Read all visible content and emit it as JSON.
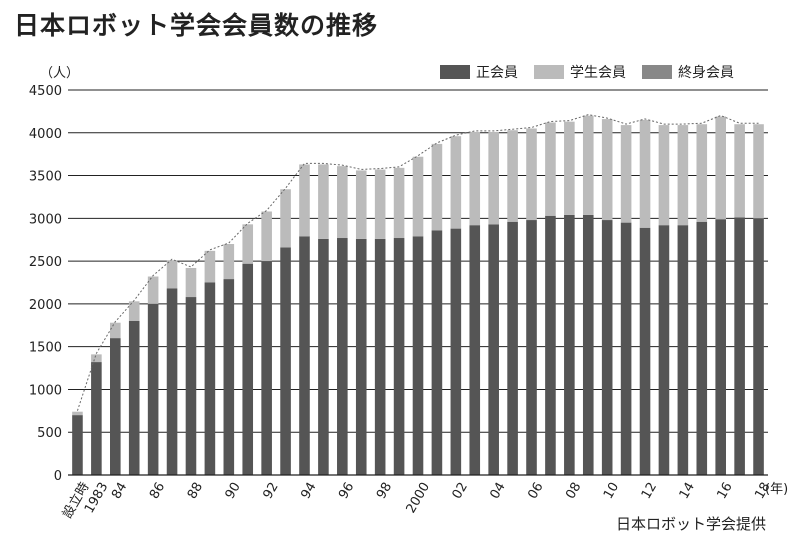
{
  "chart_data": {
    "type": "bar",
    "stacked": true,
    "title": "日本ロボット学会会員数の推移",
    "ylabel": "（人）",
    "ylim": [
      0,
      4500
    ],
    "yticks": [
      0,
      500,
      1000,
      1500,
      2000,
      2500,
      3000,
      3500,
      4000,
      4500
    ],
    "grid": true,
    "legend_position": "top-right",
    "x_unit_label": "(年)",
    "source": "日本ロボット学会提供",
    "colors": {
      "regular": "#555555",
      "student": "#bbbbbb",
      "life": "#888888"
    },
    "categories": [
      "設立時",
      "1983",
      "84",
      "85",
      "86",
      "87",
      "88",
      "89",
      "90",
      "91",
      "92",
      "93",
      "94",
      "95",
      "96",
      "97",
      "98",
      "99",
      "2000",
      "01",
      "02",
      "03",
      "04",
      "05",
      "06",
      "07",
      "08",
      "09",
      "10",
      "11",
      "12",
      "13",
      "14",
      "15",
      "16",
      "17",
      "18"
    ],
    "tick_labels": [
      "設立時",
      "1983",
      "84",
      "",
      "86",
      "",
      "88",
      "",
      "90",
      "",
      "92",
      "",
      "94",
      "",
      "96",
      "",
      "98",
      "",
      "2000",
      "",
      "02",
      "",
      "04",
      "",
      "06",
      "",
      "08",
      "",
      "10",
      "",
      "12",
      "",
      "14",
      "",
      "16",
      "",
      "18"
    ],
    "series": [
      {
        "name": "正会員",
        "values": [
          700,
          1320,
          1600,
          1800,
          2000,
          2180,
          2080,
          2250,
          2290,
          2470,
          2500,
          2660,
          2790,
          2760,
          2770,
          2760,
          2760,
          2770,
          2790,
          2860,
          2880,
          2920,
          2930,
          2960,
          2980,
          3030,
          3040,
          3040,
          2980,
          2950,
          2890,
          2920,
          2920,
          2960,
          2990,
          3010,
          3000
        ]
      },
      {
        "name": "学生会員",
        "values": [
          40,
          90,
          180,
          230,
          320,
          330,
          340,
          370,
          410,
          460,
          580,
          680,
          840,
          870,
          840,
          800,
          810,
          820,
          930,
          1010,
          1080,
          1090,
          1080,
          1070,
          1070,
          1090,
          1090,
          1160,
          1180,
          1140,
          1260,
          1170,
          1170,
          1140,
          1200,
          1090,
          1100
        ]
      },
      {
        "name": "終身会員",
        "values": [
          0,
          0,
          0,
          0,
          0,
          0,
          0,
          0,
          0,
          0,
          0,
          0,
          0,
          0,
          0,
          0,
          0,
          0,
          0,
          0,
          0,
          0,
          0,
          0,
          0,
          0,
          0,
          0,
          0,
          0,
          0,
          0,
          0,
          0,
          0,
          0,
          0
        ]
      }
    ]
  }
}
